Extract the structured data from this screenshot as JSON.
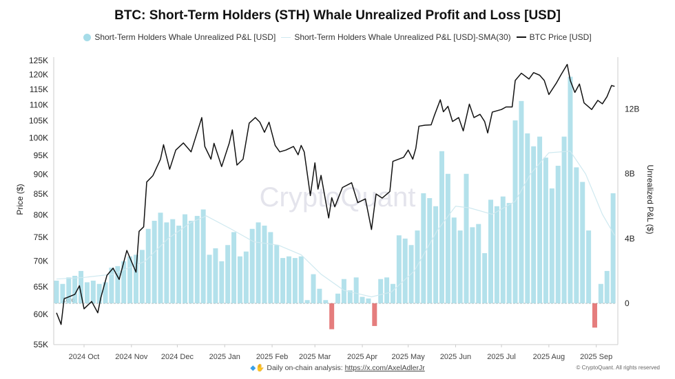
{
  "chart_data": {
    "type": "bar+line",
    "title": "BTC: Short-Term Holders (STH) Whale Unrealized Profit and Loss [USD]",
    "legend": [
      {
        "name": "Short-Term Holders Whale Unrealized P&L [USD]",
        "color": "#a6dce8",
        "marker": "dot"
      },
      {
        "name": "Short-Term Holders Whale Unrealized P&L [USD]-SMA(30)",
        "color": "#cfe9f0",
        "marker": "line"
      },
      {
        "name": "BTC Price [USD]",
        "color": "#111111",
        "marker": "line"
      }
    ],
    "legend_position": "top",
    "ylabel_left": "Price ($)",
    "ylabel_right": "Unrealized P&L ($)",
    "y_left_scale": "log",
    "y_left_range": [
      55000,
      125000
    ],
    "y_left_ticks": [
      "55K",
      "60K",
      "65K",
      "70K",
      "75K",
      "80K",
      "85K",
      "90K",
      "95K",
      "100K",
      "105K",
      "110K",
      "115K",
      "120K",
      "125K"
    ],
    "y_right_range": [
      -2.55,
      15
    ],
    "y_right_ticks": [
      "0",
      "4B",
      "8B",
      "12B"
    ],
    "y_right_tick_values": [
      0,
      4,
      8,
      12
    ],
    "x_ticks": [
      "2024 Oct",
      "2024 Nov",
      "2024 Dec",
      "2025 Jan",
      "2025 Feb",
      "2025 Mar",
      "2025 Apr",
      "2025 May",
      "2025 Jun",
      "2025 Jul",
      "2025 Aug",
      "2025 Sep"
    ],
    "x_tick_dates": [
      "2024-10-01",
      "2024-11-01",
      "2024-12-01",
      "2025-01-01",
      "2025-02-01",
      "2025-03-01",
      "2025-04-01",
      "2025-05-01",
      "2025-06-01",
      "2025-07-01",
      "2025-08-01",
      "2025-09-01"
    ],
    "zero_label": "Zero",
    "colors": {
      "positive": "#a6dce8",
      "negative": "#e06666",
      "price": "#111111",
      "sma": "#cfe9f0"
    },
    "pnl_billions": [
      [
        "2024-09-13",
        1.4
      ],
      [
        "2024-09-17",
        1.2
      ],
      [
        "2024-09-21",
        1.6
      ],
      [
        "2024-09-25",
        1.7
      ],
      [
        "2024-09-29",
        2.0
      ],
      [
        "2024-10-03",
        1.3
      ],
      [
        "2024-10-07",
        1.4
      ],
      [
        "2024-10-11",
        1.2
      ],
      [
        "2024-10-15",
        1.3
      ],
      [
        "2024-10-19",
        2.2
      ],
      [
        "2024-10-23",
        2.3
      ],
      [
        "2024-10-27",
        2.6
      ],
      [
        "2024-10-31",
        2.9
      ],
      [
        "2024-11-04",
        3.0
      ],
      [
        "2024-11-08",
        3.3
      ],
      [
        "2024-11-12",
        4.6
      ],
      [
        "2024-11-16",
        5.1
      ],
      [
        "2024-11-20",
        5.6
      ],
      [
        "2024-11-24",
        5.0
      ],
      [
        "2024-11-28",
        5.2
      ],
      [
        "2024-12-02",
        4.8
      ],
      [
        "2024-12-06",
        5.5
      ],
      [
        "2024-12-10",
        5.1
      ],
      [
        "2024-12-14",
        5.4
      ],
      [
        "2024-12-18",
        5.8
      ],
      [
        "2024-12-22",
        3.0
      ],
      [
        "2024-12-26",
        3.4
      ],
      [
        "2024-12-30",
        2.6
      ],
      [
        "2025-01-03",
        3.6
      ],
      [
        "2025-01-07",
        4.4
      ],
      [
        "2025-01-11",
        2.9
      ],
      [
        "2025-01-15",
        3.2
      ],
      [
        "2025-01-19",
        4.6
      ],
      [
        "2025-01-23",
        5.0
      ],
      [
        "2025-01-27",
        4.8
      ],
      [
        "2025-01-31",
        4.4
      ],
      [
        "2025-02-04",
        3.6
      ],
      [
        "2025-02-08",
        2.8
      ],
      [
        "2025-02-12",
        2.9
      ],
      [
        "2025-02-16",
        2.8
      ],
      [
        "2025-02-20",
        2.9
      ],
      [
        "2025-02-24",
        0.2
      ],
      [
        "2025-02-28",
        1.8
      ],
      [
        "2025-03-04",
        0.9
      ],
      [
        "2025-03-08",
        0.2
      ],
      [
        "2025-03-12",
        -1.6
      ],
      [
        "2025-03-16",
        0.6
      ],
      [
        "2025-03-20",
        1.5
      ],
      [
        "2025-03-24",
        0.8
      ],
      [
        "2025-03-28",
        1.6
      ],
      [
        "2025-04-01",
        0.4
      ],
      [
        "2025-04-05",
        0.3
      ],
      [
        "2025-04-09",
        -1.4
      ],
      [
        "2025-04-13",
        1.5
      ],
      [
        "2025-04-17",
        1.6
      ],
      [
        "2025-04-21",
        1.2
      ],
      [
        "2025-04-25",
        4.2
      ],
      [
        "2025-04-29",
        4.0
      ],
      [
        "2025-05-03",
        3.6
      ],
      [
        "2025-05-07",
        4.5
      ],
      [
        "2025-05-11",
        6.8
      ],
      [
        "2025-05-15",
        6.5
      ],
      [
        "2025-05-19",
        6.0
      ],
      [
        "2025-05-23",
        9.4
      ],
      [
        "2025-05-27",
        8.0
      ],
      [
        "2025-05-31",
        5.3
      ],
      [
        "2025-06-04",
        4.5
      ],
      [
        "2025-06-08",
        8.0
      ],
      [
        "2025-06-12",
        4.7
      ],
      [
        "2025-06-16",
        4.9
      ],
      [
        "2025-06-20",
        3.1
      ],
      [
        "2025-06-24",
        6.4
      ],
      [
        "2025-06-28",
        6.0
      ],
      [
        "2025-07-02",
        6.6
      ],
      [
        "2025-07-06",
        6.2
      ],
      [
        "2025-07-10",
        11.3
      ],
      [
        "2025-07-14",
        12.5
      ],
      [
        "2025-07-18",
        10.5
      ],
      [
        "2025-07-22",
        9.7
      ],
      [
        "2025-07-26",
        10.3
      ],
      [
        "2025-07-30",
        9.0
      ],
      [
        "2025-08-03",
        7.1
      ],
      [
        "2025-08-07",
        8.5
      ],
      [
        "2025-08-11",
        10.3
      ],
      [
        "2025-08-15",
        14.0
      ],
      [
        "2025-08-19",
        8.4
      ],
      [
        "2025-08-23",
        7.5
      ],
      [
        "2025-08-27",
        4.5
      ],
      [
        "2025-08-31",
        -1.5
      ],
      [
        "2025-09-04",
        1.2
      ],
      [
        "2025-09-08",
        2.0
      ],
      [
        "2025-09-12",
        6.8
      ]
    ],
    "sma30_billions": [
      [
        "2024-09-13",
        1.5
      ],
      [
        "2024-10-01",
        1.6
      ],
      [
        "2024-10-20",
        1.8
      ],
      [
        "2024-11-10",
        2.6
      ],
      [
        "2024-11-25",
        4.0
      ],
      [
        "2024-12-10",
        5.0
      ],
      [
        "2024-12-20",
        5.4
      ],
      [
        "2025-01-05",
        4.6
      ],
      [
        "2025-01-20",
        3.8
      ],
      [
        "2025-02-05",
        3.6
      ],
      [
        "2025-02-20",
        3.0
      ],
      [
        "2025-03-05",
        1.8
      ],
      [
        "2025-03-20",
        0.8
      ],
      [
        "2025-04-07",
        0.4
      ],
      [
        "2025-04-20",
        0.7
      ],
      [
        "2025-05-05",
        2.0
      ],
      [
        "2025-05-20",
        4.5
      ],
      [
        "2025-06-01",
        6.0
      ],
      [
        "2025-06-10",
        5.9
      ],
      [
        "2025-06-25",
        5.5
      ],
      [
        "2025-07-10",
        6.3
      ],
      [
        "2025-07-20",
        8.0
      ],
      [
        "2025-08-01",
        9.3
      ],
      [
        "2025-08-15",
        9.4
      ],
      [
        "2025-08-25",
        8.0
      ],
      [
        "2025-09-05",
        5.5
      ],
      [
        "2025-09-13",
        4.2
      ]
    ],
    "btc_price_usd": [
      [
        "2024-09-13",
        60300
      ],
      [
        "2024-09-16",
        58300
      ],
      [
        "2024-09-18",
        62800
      ],
      [
        "2024-09-25",
        63600
      ],
      [
        "2024-09-28",
        65200
      ],
      [
        "2024-10-01",
        61000
      ],
      [
        "2024-10-06",
        62300
      ],
      [
        "2024-10-10",
        60300
      ],
      [
        "2024-10-12",
        63000
      ],
      [
        "2024-10-16",
        67200
      ],
      [
        "2024-10-20",
        68600
      ],
      [
        "2024-10-24",
        66400
      ],
      [
        "2024-10-29",
        72200
      ],
      [
        "2024-11-04",
        67800
      ],
      [
        "2024-11-06",
        76300
      ],
      [
        "2024-11-09",
        77300
      ],
      [
        "2024-11-11",
        88000
      ],
      [
        "2024-11-15",
        89600
      ],
      [
        "2024-11-20",
        94000
      ],
      [
        "2024-11-22",
        98000
      ],
      [
        "2024-11-26",
        91300
      ],
      [
        "2024-11-30",
        96500
      ],
      [
        "2024-12-05",
        98500
      ],
      [
        "2024-12-10",
        96000
      ],
      [
        "2024-12-17",
        106000
      ],
      [
        "2024-12-19",
        97500
      ],
      [
        "2024-12-23",
        94000
      ],
      [
        "2024-12-25",
        98400
      ],
      [
        "2024-12-30",
        92000
      ],
      [
        "2025-01-04",
        98500
      ],
      [
        "2025-01-06",
        102300
      ],
      [
        "2025-01-09",
        92400
      ],
      [
        "2025-01-13",
        94000
      ],
      [
        "2025-01-17",
        104300
      ],
      [
        "2025-01-21",
        106000
      ],
      [
        "2025-01-24",
        104600
      ],
      [
        "2025-01-27",
        101600
      ],
      [
        "2025-01-30",
        104600
      ],
      [
        "2025-02-03",
        97800
      ],
      [
        "2025-02-06",
        96000
      ],
      [
        "2025-02-10",
        96500
      ],
      [
        "2025-02-15",
        97500
      ],
      [
        "2025-02-18",
        95200
      ],
      [
        "2025-02-20",
        97800
      ],
      [
        "2025-02-22",
        96000
      ],
      [
        "2025-02-26",
        84600
      ],
      [
        "2025-03-01",
        93000
      ],
      [
        "2025-03-03",
        86200
      ],
      [
        "2025-03-05",
        89700
      ],
      [
        "2025-03-10",
        79300
      ],
      [
        "2025-03-12",
        84100
      ],
      [
        "2025-03-14",
        81900
      ],
      [
        "2025-03-19",
        86600
      ],
      [
        "2025-03-25",
        87800
      ],
      [
        "2025-03-29",
        82900
      ],
      [
        "2025-04-03",
        83800
      ],
      [
        "2025-04-07",
        76700
      ],
      [
        "2025-04-10",
        85000
      ],
      [
        "2025-04-14",
        84000
      ],
      [
        "2025-04-19",
        85600
      ],
      [
        "2025-04-21",
        93400
      ],
      [
        "2025-04-28",
        94500
      ],
      [
        "2025-05-01",
        96500
      ],
      [
        "2025-05-04",
        94000
      ],
      [
        "2025-05-06",
        97000
      ],
      [
        "2025-05-08",
        103400
      ],
      [
        "2025-05-12",
        103700
      ],
      [
        "2025-05-16",
        103800
      ],
      [
        "2025-05-18",
        106500
      ],
      [
        "2025-05-22",
        111600
      ],
      [
        "2025-05-24",
        107800
      ],
      [
        "2025-05-27",
        109500
      ],
      [
        "2025-05-30",
        104800
      ],
      [
        "2025-06-03",
        106000
      ],
      [
        "2025-06-06",
        102000
      ],
      [
        "2025-06-10",
        110200
      ],
      [
        "2025-06-13",
        106000
      ],
      [
        "2025-06-17",
        107000
      ],
      [
        "2025-06-20",
        104800
      ],
      [
        "2025-06-22",
        101400
      ],
      [
        "2025-06-25",
        107700
      ],
      [
        "2025-07-01",
        108500
      ],
      [
        "2025-07-04",
        109300
      ],
      [
        "2025-07-08",
        109300
      ],
      [
        "2025-07-10",
        118000
      ],
      [
        "2025-07-14",
        120500
      ],
      [
        "2025-07-19",
        118500
      ],
      [
        "2025-07-22",
        120700
      ],
      [
        "2025-07-26",
        119800
      ],
      [
        "2025-07-29",
        118000
      ],
      [
        "2025-08-01",
        113300
      ],
      [
        "2025-08-06",
        117200
      ],
      [
        "2025-08-09",
        120000
      ],
      [
        "2025-08-13",
        123600
      ],
      [
        "2025-08-15",
        118000
      ],
      [
        "2025-08-18",
        114000
      ],
      [
        "2025-08-21",
        116800
      ],
      [
        "2025-08-24",
        110600
      ],
      [
        "2025-08-29",
        108500
      ],
      [
        "2025-09-02",
        111400
      ],
      [
        "2025-09-05",
        110300
      ],
      [
        "2025-09-08",
        112600
      ],
      [
        "2025-09-11",
        116300
      ],
      [
        "2025-09-13",
        116000
      ]
    ]
  },
  "watermark": "CryptoQuant",
  "footer": {
    "text": "Daily on-chain analysis:",
    "link": "https://x.com/AxelAdlerJr",
    "icons": [
      "gem-icon",
      "raised-hands-icon"
    ]
  },
  "copyright": "© CryptoQuant. All rights reserved"
}
